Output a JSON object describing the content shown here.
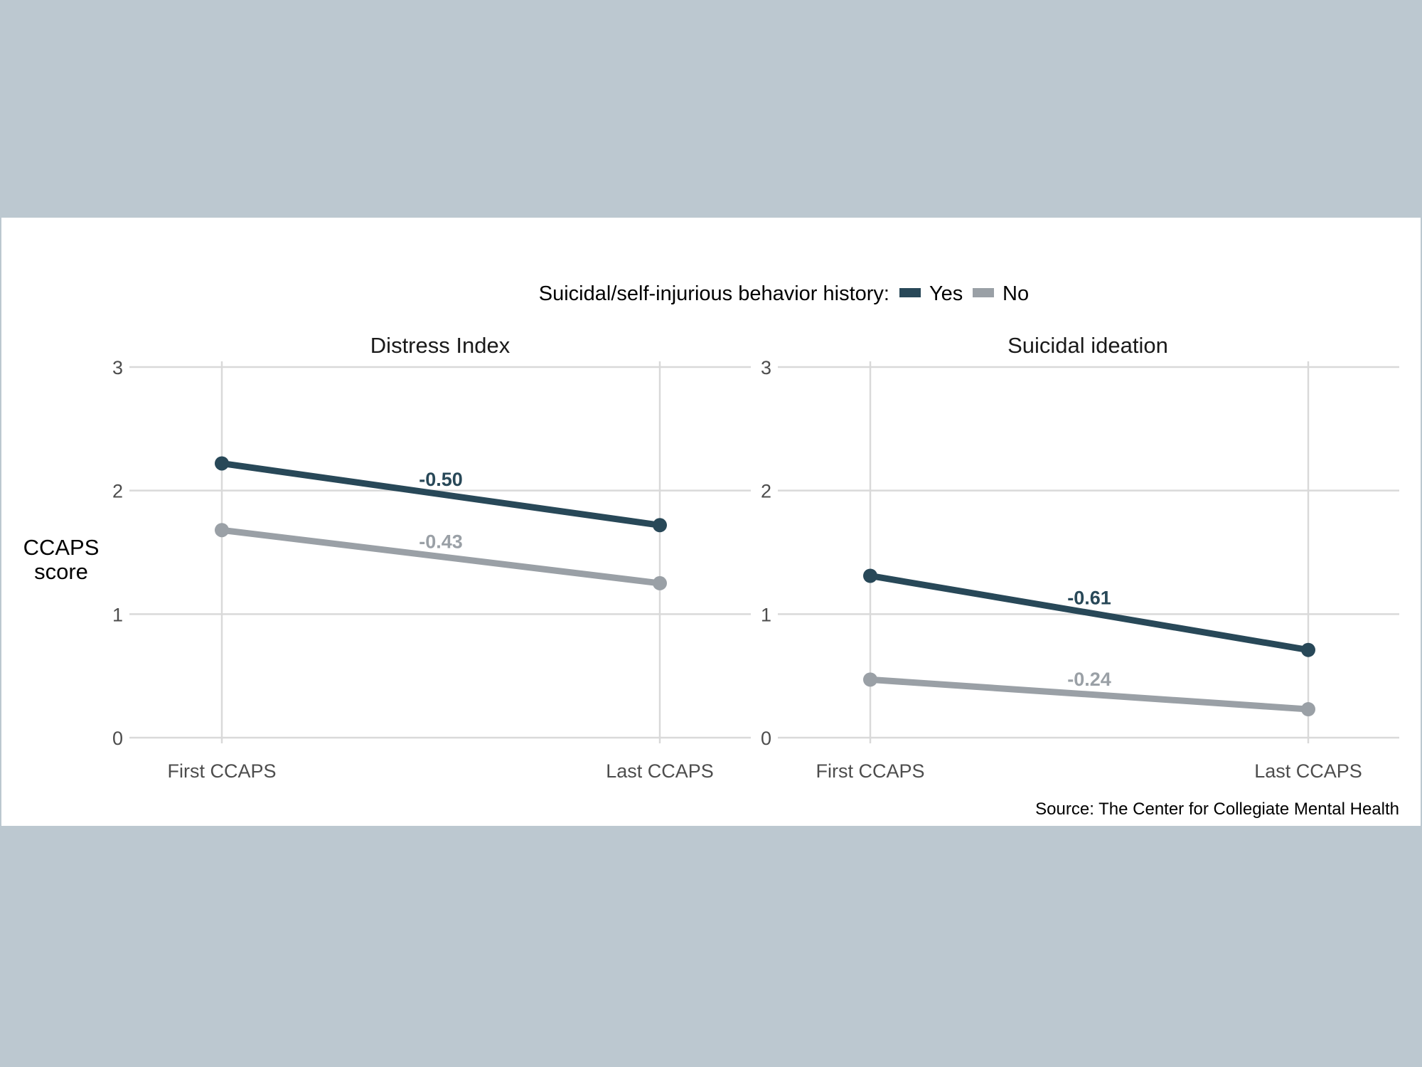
{
  "chart_data": {
    "type": "line",
    "legend": {
      "title": "Suicidal/self-injurious behavior history:",
      "placement": "top",
      "entries": [
        {
          "label": "Yes",
          "color": "#284858"
        },
        {
          "label": "No",
          "color": "#9aa0a6"
        }
      ]
    },
    "ylabel": [
      "CCAPS",
      "score"
    ],
    "ylim": [
      0,
      3
    ],
    "yticks": [
      "0",
      "1",
      "2",
      "3"
    ],
    "categories": [
      "First CCAPS",
      "Last CCAPS"
    ],
    "grid": true,
    "facets": [
      {
        "title": "Distress Index",
        "series": [
          {
            "group": "Yes",
            "values": [
              2.22,
              1.72
            ],
            "change_label": "-0.50"
          },
          {
            "group": "No",
            "values": [
              1.68,
              1.25
            ],
            "change_label": "-0.43"
          }
        ]
      },
      {
        "title": "Suicidal ideation",
        "series": [
          {
            "group": "Yes",
            "values": [
              1.31,
              0.71
            ],
            "change_label": "-0.61"
          },
          {
            "group": "No",
            "values": [
              0.47,
              0.23
            ],
            "change_label": "-0.24"
          }
        ]
      }
    ],
    "caption": "Source: The Center for Collegiate Mental Health"
  }
}
